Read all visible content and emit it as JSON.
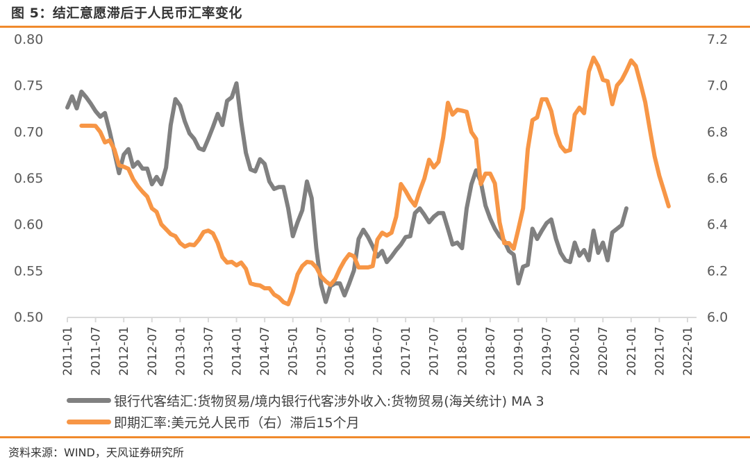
{
  "header": {
    "title": "图 5：结汇意愿滞后于人民币汇率变化"
  },
  "footer": {
    "source": "资料来源：WIND，天风证券研究所"
  },
  "colors": {
    "gray_series": "#808080",
    "orange_series": "#f79646",
    "accent_rule": "#f08a2c",
    "axis": "#d9d9d9"
  },
  "chart_data": {
    "type": "line",
    "title": "结汇意愿滞后于人民币汇率变化",
    "xlabel": "",
    "ylabel_left": "",
    "ylabel_right": "",
    "ylim_left": [
      0.5,
      0.8
    ],
    "ylim_right": [
      6.0,
      7.2
    ],
    "yticks_left": [
      "0.80",
      "0.75",
      "0.70",
      "0.65",
      "0.60",
      "0.55",
      "0.50"
    ],
    "yticks_right": [
      "7.2",
      "7.0",
      "6.8",
      "6.6",
      "6.4",
      "6.2",
      "6.0"
    ],
    "xticks": [
      "2011-01",
      "2011-07",
      "2012-01",
      "2012-07",
      "2013-01",
      "2013-07",
      "2014-01",
      "2014-07",
      "2015-01",
      "2015-07",
      "2016-01",
      "2016-07",
      "2017-01",
      "2017-07",
      "2018-01",
      "2018-07",
      "2019-01",
      "2019-07",
      "2020-01",
      "2020-07",
      "2021-01",
      "2021-07",
      "2022-01"
    ],
    "grid": false,
    "legend_position": "bottom",
    "series": [
      {
        "name": "银行代客结汇:货物贸易/境内银行代客涉外收入:货物贸易(海关统计) MA 3",
        "axis": "left",
        "start": "2011-01",
        "values": [
          0.726,
          0.738,
          0.725,
          0.743,
          0.737,
          0.73,
          0.722,
          0.716,
          0.72,
          0.7,
          0.678,
          0.655,
          0.675,
          0.681,
          0.662,
          0.667,
          0.66,
          0.66,
          0.643,
          0.651,
          0.643,
          0.661,
          0.707,
          0.735,
          0.728,
          0.711,
          0.698,
          0.692,
          0.682,
          0.68,
          0.692,
          0.705,
          0.719,
          0.707,
          0.733,
          0.737,
          0.752,
          0.711,
          0.677,
          0.659,
          0.657,
          0.67,
          0.665,
          0.646,
          0.638,
          0.64,
          0.64,
          0.617,
          0.587,
          0.602,
          0.615,
          0.646,
          0.628,
          0.574,
          0.535,
          0.516,
          0.533,
          0.536,
          0.536,
          0.523,
          0.536,
          0.55,
          0.584,
          0.594,
          0.586,
          0.576,
          0.565,
          0.571,
          0.559,
          0.565,
          0.572,
          0.578,
          0.586,
          0.587,
          0.612,
          0.617,
          0.61,
          0.602,
          0.608,
          0.612,
          0.612,
          0.595,
          0.578,
          0.58,
          0.574,
          0.617,
          0.643,
          0.658,
          0.646,
          0.62,
          0.606,
          0.595,
          0.587,
          0.582,
          0.571,
          0.567,
          0.536,
          0.554,
          0.556,
          0.595,
          0.584,
          0.593,
          0.601,
          0.605,
          0.584,
          0.569,
          0.561,
          0.559,
          0.58,
          0.566,
          0.572,
          0.561,
          0.593,
          0.569,
          0.58,
          0.561,
          0.591,
          0.595,
          0.599,
          0.617
        ]
      },
      {
        "name": "即期汇率:美元兑人民币（右）滞后15个月",
        "axis": "right",
        "start": "2011-04",
        "values": [
          6.825,
          6.825,
          6.825,
          6.824,
          6.798,
          6.753,
          6.762,
          6.723,
          6.654,
          6.648,
          6.639,
          6.594,
          6.564,
          6.54,
          6.519,
          6.468,
          6.453,
          6.399,
          6.378,
          6.357,
          6.348,
          6.318,
          6.303,
          6.312,
          6.309,
          6.333,
          6.366,
          6.372,
          6.36,
          6.318,
          6.258,
          6.234,
          6.237,
          6.222,
          6.234,
          6.207,
          6.144,
          6.138,
          6.135,
          6.123,
          6.123,
          6.096,
          6.084,
          6.063,
          6.054,
          6.108,
          6.183,
          6.219,
          6.237,
          6.234,
          6.213,
          6.174,
          6.153,
          6.138,
          6.162,
          6.207,
          6.243,
          6.27,
          6.261,
          6.213,
          6.213,
          6.213,
          6.219,
          6.333,
          6.363,
          6.351,
          6.363,
          6.432,
          6.573,
          6.543,
          6.507,
          6.48,
          6.543,
          6.597,
          6.678,
          6.645,
          6.669,
          6.774,
          6.924,
          6.873,
          6.894,
          6.89,
          6.885,
          6.798,
          6.768,
          6.573,
          6.618,
          6.618,
          6.576,
          6.408,
          6.318,
          6.318,
          6.294,
          6.378,
          6.468,
          6.723,
          6.849,
          6.861,
          6.939,
          6.939,
          6.888,
          6.792,
          6.738,
          6.714,
          6.72,
          6.873,
          6.903,
          6.879,
          7.059,
          7.119,
          7.083,
          7.023,
          7.017,
          6.918,
          6.999,
          7.023,
          7.062,
          7.107,
          7.083,
          7.008,
          6.927,
          6.807,
          6.693,
          6.609,
          6.543,
          6.477
        ]
      }
    ]
  }
}
